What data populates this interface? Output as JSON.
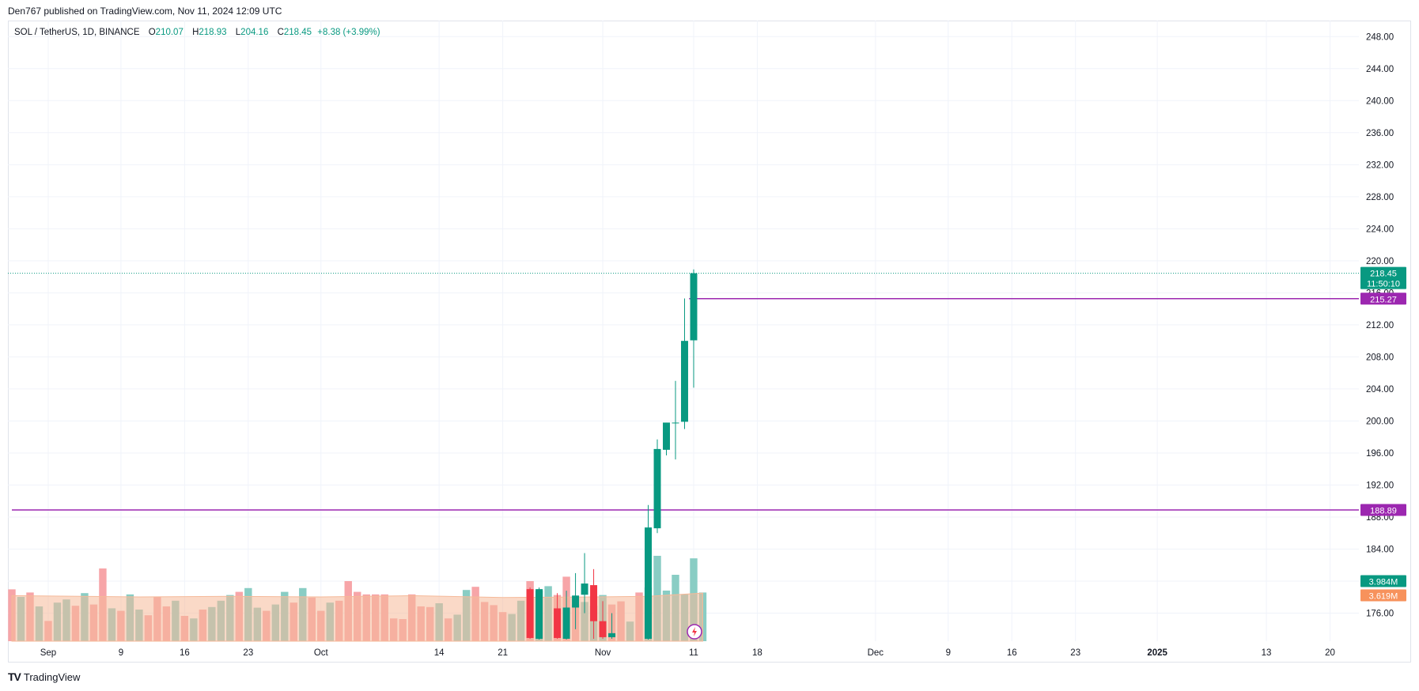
{
  "header": {
    "published": "Den767 published on TradingView.com, Nov 11, 2024 12:09 UTC"
  },
  "legend": {
    "symbol": "SOL / TetherUS, 1D, BINANCE",
    "o_label": "O",
    "o": "210.07",
    "h_label": "H",
    "h": "218.93",
    "l_label": "L",
    "l": "204.16",
    "c_label": "C",
    "c": "218.45",
    "change": "+8.38 (+3.99%)"
  },
  "footer": {
    "logo_text": "TradingView",
    "logo_mark": "TV"
  },
  "colors": {
    "up": "#089981",
    "down": "#f23645",
    "vol_up": "#89cdc4",
    "vol_down": "#f7a5a8",
    "vol_ma": "#f5b999",
    "hline": "#9c27b0",
    "price_tag": "#089981",
    "vol_tag": "#f7925c"
  },
  "chart_data": {
    "type": "candlestick",
    "title": "SOL / TetherUS, 1D, BINANCE",
    "y_ticks": [
      "176.00",
      "180.00",
      "184.00",
      "188.00",
      "192.00",
      "196.00",
      "200.00",
      "204.00",
      "208.00",
      "212.00",
      "216.00",
      "220.00",
      "224.00",
      "228.00",
      "232.00",
      "236.00",
      "240.00",
      "244.00",
      "248.00"
    ],
    "ylim": [
      172.5,
      250
    ],
    "x_ticks": [
      {
        "label": "Sep",
        "day": 0
      },
      {
        "label": "9",
        "day": 8
      },
      {
        "label": "16",
        "day": 15
      },
      {
        "label": "23",
        "day": 22
      },
      {
        "label": "Oct",
        "day": 30
      },
      {
        "label": "14",
        "day": 43
      },
      {
        "label": "21",
        "day": 50
      },
      {
        "label": "Nov",
        "day": 61
      },
      {
        "label": "11",
        "day": 71
      },
      {
        "label": "18",
        "day": 78
      },
      {
        "label": "Dec",
        "day": 91
      },
      {
        "label": "9",
        "day": 99
      },
      {
        "label": "16",
        "day": 106
      },
      {
        "label": "23",
        "day": 113
      },
      {
        "label": "2025",
        "day": 122
      },
      {
        "label": "13",
        "day": 134
      },
      {
        "label": "20",
        "day": 141
      }
    ],
    "x_first_day": -4,
    "x_last_day": 142,
    "candles": [
      {
        "day": 53,
        "o": 179.0,
        "h": 179.2,
        "l": 172.8,
        "c": 172.9
      },
      {
        "day": 54,
        "o": 172.8,
        "h": 179.2,
        "l": 172.7,
        "c": 179.0
      },
      {
        "day": 56,
        "o": 176.6,
        "h": 178.5,
        "l": 172.8,
        "c": 172.9
      },
      {
        "day": 57,
        "o": 172.8,
        "h": 178.8,
        "l": 172.7,
        "c": 176.7
      },
      {
        "day": 58,
        "o": 176.7,
        "h": 181.0,
        "l": 174.0,
        "c": 178.2
      },
      {
        "day": 59,
        "o": 178.3,
        "h": 183.5,
        "l": 176.0,
        "c": 179.7
      },
      {
        "day": 60,
        "o": 179.5,
        "h": 181.5,
        "l": 172.8,
        "c": 175.0
      },
      {
        "day": 61,
        "o": 175.0,
        "h": 177.5,
        "l": 172.8,
        "c": 173.0
      },
      {
        "day": 62,
        "o": 173.0,
        "h": 176.0,
        "l": 172.8,
        "c": 173.5
      },
      {
        "day": 66,
        "o": 172.8,
        "h": 189.5,
        "l": 172.7,
        "c": 186.7
      },
      {
        "day": 67,
        "o": 186.6,
        "h": 197.7,
        "l": 186.0,
        "c": 196.5
      },
      {
        "day": 68,
        "o": 196.4,
        "h": 199.8,
        "l": 195.7,
        "c": 199.8
      },
      {
        "day": 69,
        "o": 199.8,
        "h": 205.0,
        "l": 195.2,
        "c": 199.8
      },
      {
        "day": 70,
        "o": 199.9,
        "h": 215.3,
        "l": 199.0,
        "c": 210.0
      },
      {
        "day": 71,
        "o": 210.07,
        "h": 218.93,
        "l": 204.16,
        "c": 218.45
      }
    ],
    "volume_max": 240,
    "volume": [
      {
        "day": -4,
        "v": 82,
        "dir": "down"
      },
      {
        "day": -3,
        "v": 70,
        "dir": "up"
      },
      {
        "day": -2,
        "v": 77,
        "dir": "down"
      },
      {
        "day": -1,
        "v": 55,
        "dir": "up"
      },
      {
        "day": 0,
        "v": 32,
        "dir": "down"
      },
      {
        "day": 1,
        "v": 61,
        "dir": "up"
      },
      {
        "day": 2,
        "v": 66,
        "dir": "up"
      },
      {
        "day": 3,
        "v": 56,
        "dir": "down"
      },
      {
        "day": 4,
        "v": 76,
        "dir": "up"
      },
      {
        "day": 5,
        "v": 58,
        "dir": "down"
      },
      {
        "day": 6,
        "v": 115,
        "dir": "down"
      },
      {
        "day": 7,
        "v": 52,
        "dir": "up"
      },
      {
        "day": 8,
        "v": 48,
        "dir": "down"
      },
      {
        "day": 9,
        "v": 74,
        "dir": "up"
      },
      {
        "day": 10,
        "v": 50,
        "dir": "up"
      },
      {
        "day": 11,
        "v": 41,
        "dir": "down"
      },
      {
        "day": 12,
        "v": 70,
        "dir": "down"
      },
      {
        "day": 13,
        "v": 55,
        "dir": "down"
      },
      {
        "day": 14,
        "v": 64,
        "dir": "up"
      },
      {
        "day": 15,
        "v": 40,
        "dir": "down"
      },
      {
        "day": 16,
        "v": 36,
        "dir": "up"
      },
      {
        "day": 17,
        "v": 50,
        "dir": "down"
      },
      {
        "day": 18,
        "v": 54,
        "dir": "up"
      },
      {
        "day": 19,
        "v": 64,
        "dir": "up"
      },
      {
        "day": 20,
        "v": 73,
        "dir": "up"
      },
      {
        "day": 21,
        "v": 78,
        "dir": "down"
      },
      {
        "day": 22,
        "v": 84,
        "dir": "up"
      },
      {
        "day": 23,
        "v": 53,
        "dir": "up"
      },
      {
        "day": 24,
        "v": 48,
        "dir": "down"
      },
      {
        "day": 25,
        "v": 58,
        "dir": "up"
      },
      {
        "day": 26,
        "v": 78,
        "dir": "up"
      },
      {
        "day": 27,
        "v": 61,
        "dir": "down"
      },
      {
        "day": 28,
        "v": 84,
        "dir": "up"
      },
      {
        "day": 29,
        "v": 69,
        "dir": "down"
      },
      {
        "day": 30,
        "v": 48,
        "dir": "down"
      },
      {
        "day": 31,
        "v": 61,
        "dir": "up"
      },
      {
        "day": 32,
        "v": 64,
        "dir": "down"
      },
      {
        "day": 33,
        "v": 95,
        "dir": "down"
      },
      {
        "day": 34,
        "v": 78,
        "dir": "down"
      },
      {
        "day": 35,
        "v": 74,
        "dir": "down"
      },
      {
        "day": 36,
        "v": 74,
        "dir": "down"
      },
      {
        "day": 37,
        "v": 74,
        "dir": "down"
      },
      {
        "day": 38,
        "v": 36,
        "dir": "down"
      },
      {
        "day": 39,
        "v": 35,
        "dir": "down"
      },
      {
        "day": 40,
        "v": 74,
        "dir": "down"
      },
      {
        "day": 41,
        "v": 55,
        "dir": "down"
      },
      {
        "day": 42,
        "v": 54,
        "dir": "down"
      },
      {
        "day": 43,
        "v": 60,
        "dir": "up"
      },
      {
        "day": 44,
        "v": 36,
        "dir": "down"
      },
      {
        "day": 45,
        "v": 42,
        "dir": "up"
      },
      {
        "day": 46,
        "v": 81,
        "dir": "up"
      },
      {
        "day": 47,
        "v": 86,
        "dir": "down"
      },
      {
        "day": 48,
        "v": 62,
        "dir": "down"
      },
      {
        "day": 49,
        "v": 57,
        "dir": "down"
      },
      {
        "day": 50,
        "v": 46,
        "dir": "down"
      },
      {
        "day": 51,
        "v": 43,
        "dir": "up"
      },
      {
        "day": 52,
        "v": 64,
        "dir": "up"
      },
      {
        "day": 53,
        "v": 95,
        "dir": "down"
      },
      {
        "day": 54,
        "v": 80,
        "dir": "up"
      },
      {
        "day": 55,
        "v": 87,
        "dir": "up"
      },
      {
        "day": 56,
        "v": 73,
        "dir": "down"
      },
      {
        "day": 57,
        "v": 102,
        "dir": "down"
      },
      {
        "day": 58,
        "v": 58,
        "dir": "down"
      },
      {
        "day": 59,
        "v": 62,
        "dir": "up"
      },
      {
        "day": 60,
        "v": 56,
        "dir": "up"
      },
      {
        "day": 61,
        "v": 73,
        "dir": "up"
      },
      {
        "day": 62,
        "v": 58,
        "dir": "down"
      },
      {
        "day": 63,
        "v": 63,
        "dir": "down"
      },
      {
        "day": 64,
        "v": 31,
        "dir": "up"
      },
      {
        "day": 65,
        "v": 77,
        "dir": "down"
      },
      {
        "day": 66,
        "v": 85,
        "dir": "up"
      },
      {
        "day": 67,
        "v": 135,
        "dir": "up"
      },
      {
        "day": 68,
        "v": 80,
        "dir": "up"
      },
      {
        "day": 69,
        "v": 105,
        "dir": "up"
      },
      {
        "day": 70,
        "v": 74,
        "dir": "up"
      },
      {
        "day": 71,
        "v": 131,
        "dir": "up"
      },
      {
        "day": 72,
        "v": 77,
        "dir": "up"
      }
    ],
    "volume_ma": [
      {
        "day": -4,
        "v": 72
      },
      {
        "day": 10,
        "v": 70
      },
      {
        "day": 20,
        "v": 71
      },
      {
        "day": 30,
        "v": 70
      },
      {
        "day": 40,
        "v": 72
      },
      {
        "day": 50,
        "v": 69
      },
      {
        "day": 60,
        "v": 70
      },
      {
        "day": 66,
        "v": 71
      },
      {
        "day": 72,
        "v": 76
      }
    ],
    "horizontal_lines": [
      {
        "price": 215.27,
        "label": "215.27",
        "start_day": 70.5
      },
      {
        "price": 188.89,
        "label": "188.89",
        "start_day": -4
      }
    ],
    "last_price": {
      "value": 218.45,
      "label": "218.45",
      "countdown": "11:50:10"
    },
    "volume_tags": [
      {
        "label": "3.984M",
        "kind": "price"
      },
      {
        "label": "3.619M",
        "kind": "ma"
      }
    ]
  }
}
